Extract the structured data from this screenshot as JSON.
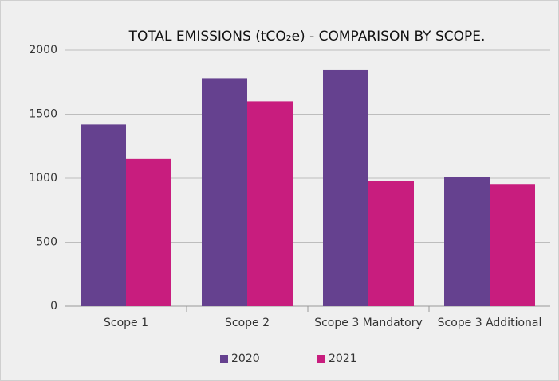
{
  "chart_data": {
    "type": "bar",
    "title": "TOTAL EMISSIONS (tCO₂e) - COMPARISON BY SCOPE.",
    "categories": [
      "Scope 1",
      "Scope 2",
      "Scope 3 Mandatory",
      "Scope 3 Additional"
    ],
    "series": [
      {
        "name": "2020",
        "color": "#65418f",
        "values": [
          1420,
          1780,
          1845,
          1010
        ]
      },
      {
        "name": "2021",
        "color": "#c81d7e",
        "values": [
          1150,
          1600,
          980,
          955
        ]
      }
    ],
    "ylim": [
      0,
      2000
    ],
    "yticks": [
      0,
      500,
      1000,
      1500,
      2000
    ],
    "grid": true,
    "legend": "bottom"
  }
}
